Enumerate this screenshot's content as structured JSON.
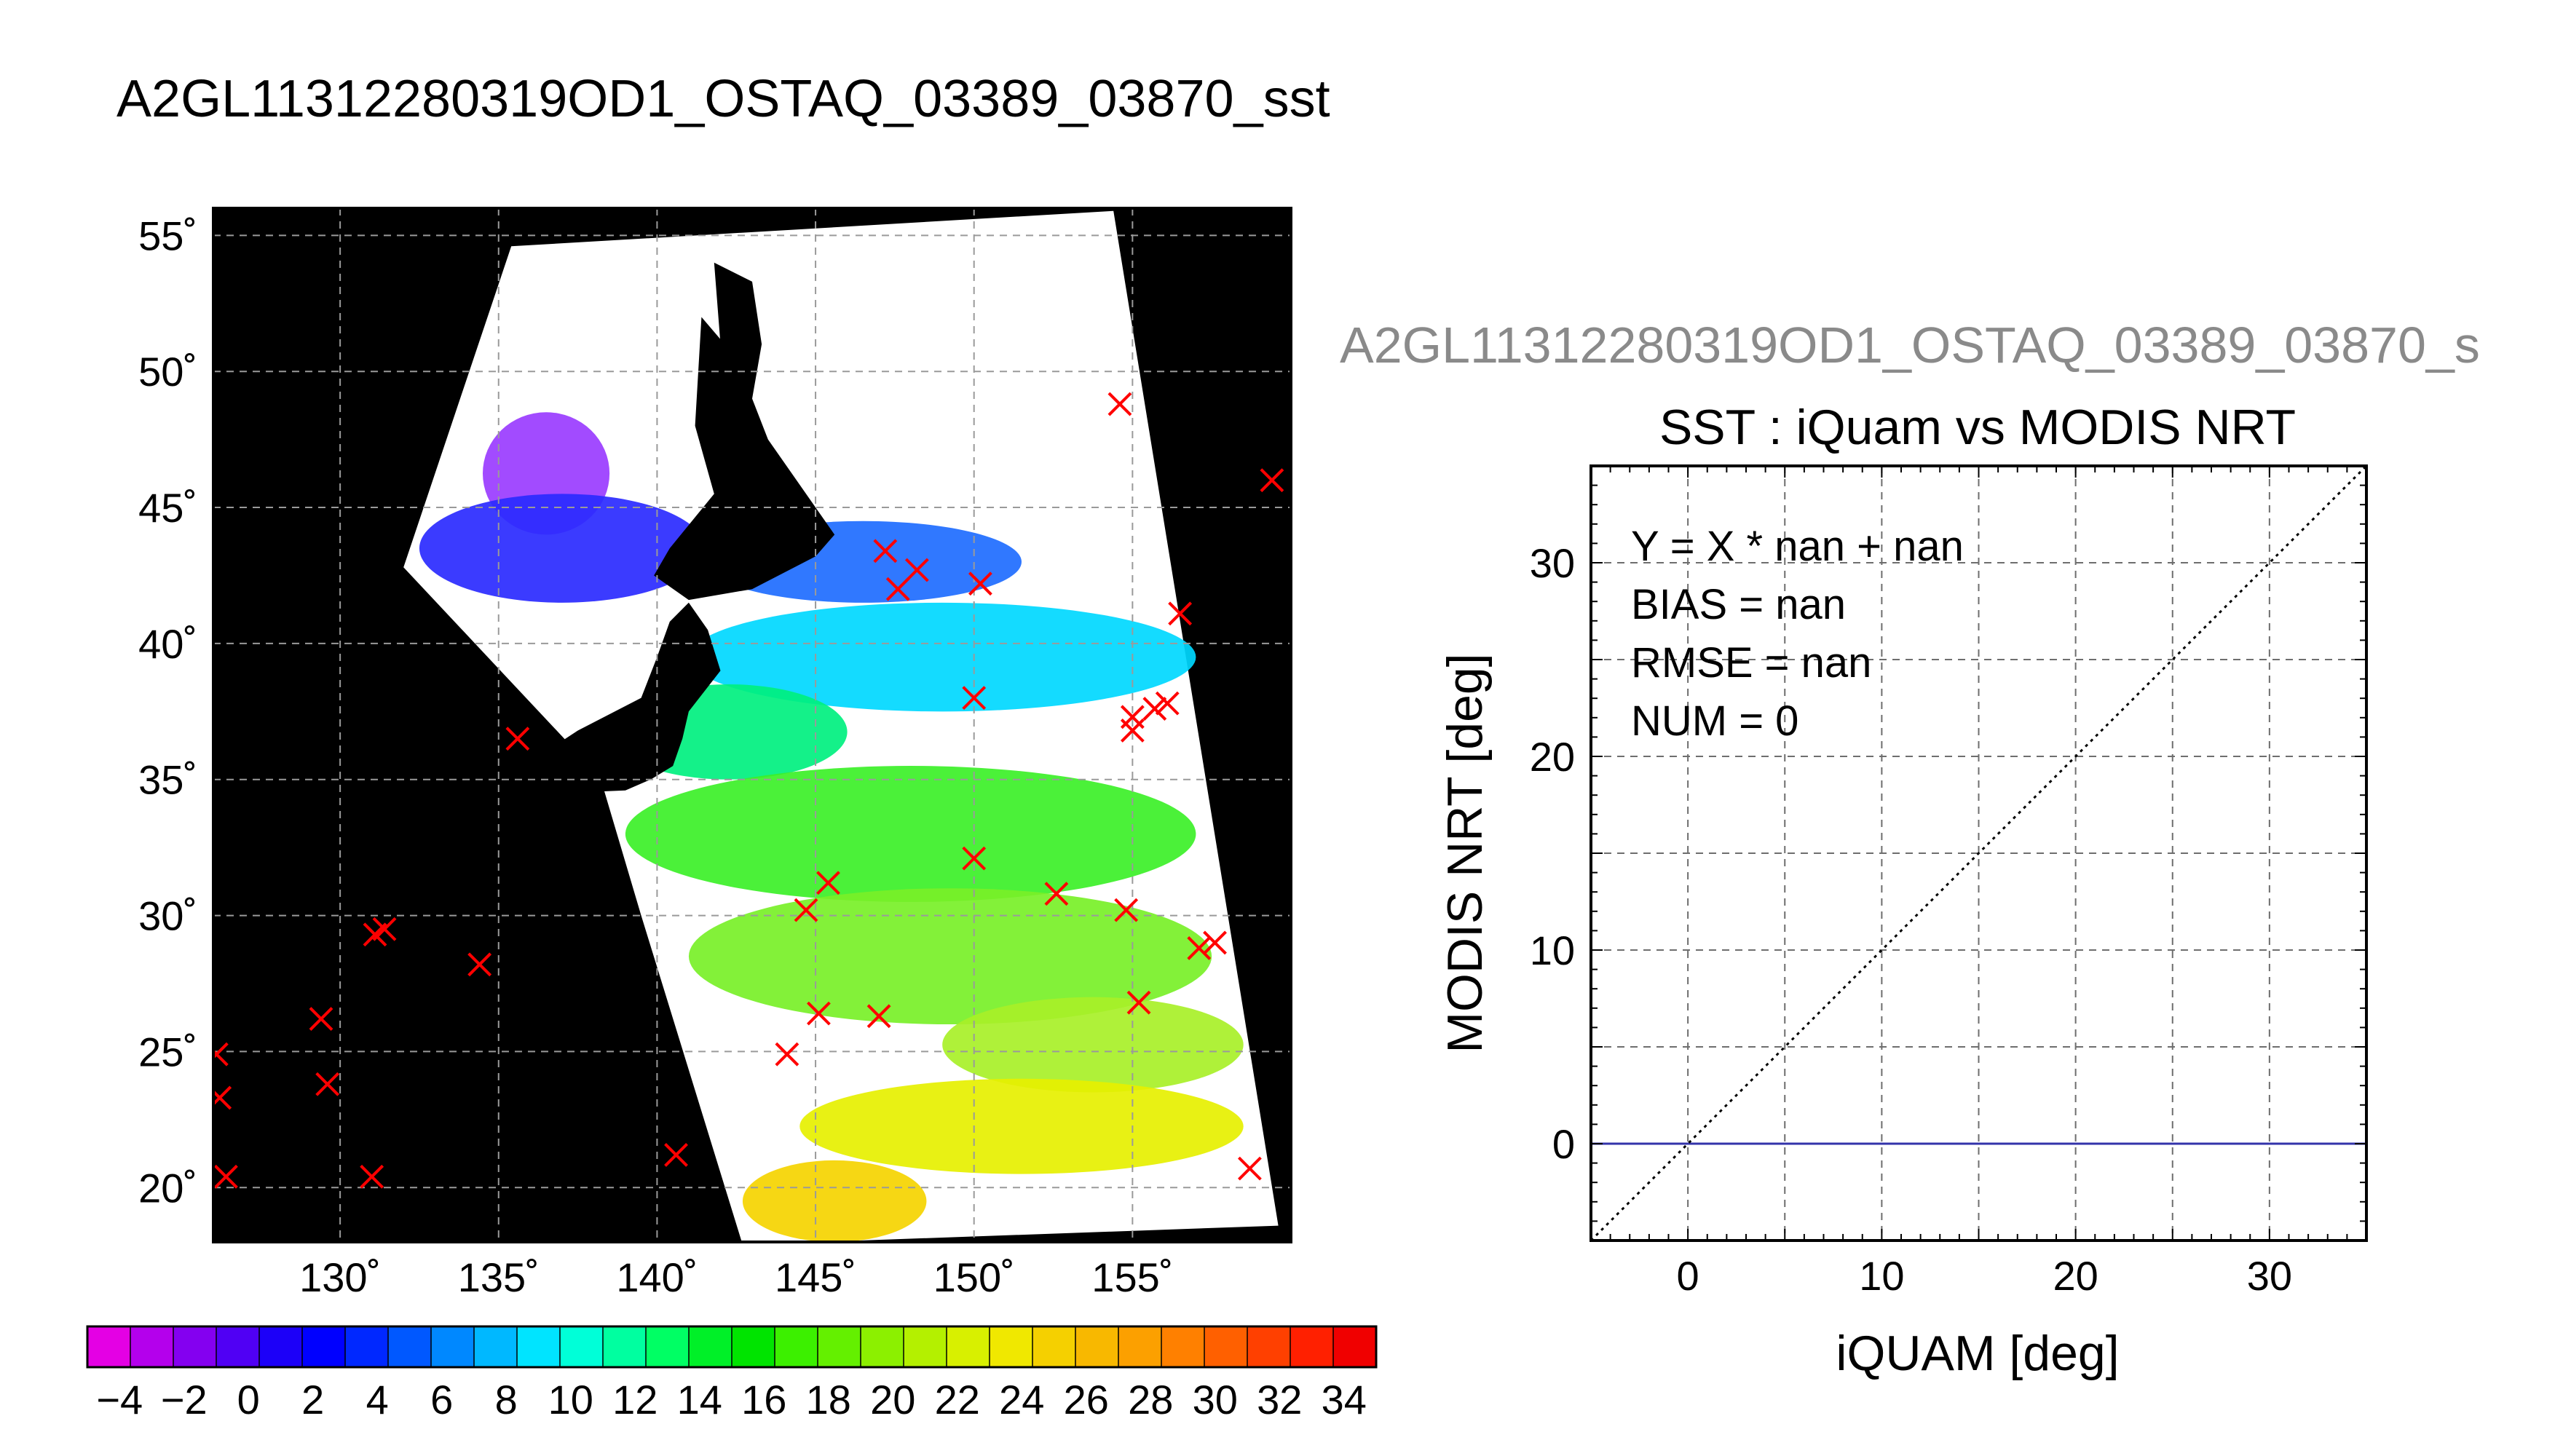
{
  "figure": {
    "main_title": "A2GL11312280319OD1_OSTAQ_03389_03870_sst"
  },
  "chart_data": [
    {
      "type": "map",
      "title": "A2GL11312280319OD1_OSTAQ_03389_03870_sst",
      "xlim": [
        126,
        160
      ],
      "ylim": [
        18,
        56
      ],
      "x_ticks": [
        130,
        135,
        140,
        145,
        150,
        155
      ],
      "x_tick_labels": [
        "130˚",
        "135˚",
        "140˚",
        "145˚",
        "150˚",
        "155˚"
      ],
      "y_ticks": [
        20,
        25,
        30,
        35,
        40,
        45,
        50,
        55
      ],
      "y_tick_labels": [
        "20˚",
        "25˚",
        "30˚",
        "35˚",
        "40˚",
        "45˚",
        "50˚",
        "55˚"
      ],
      "grid": true,
      "swath": [
        [
          135.4,
          54.6
        ],
        [
          154.4,
          55.9
        ],
        [
          159.6,
          18.6
        ],
        [
          142.7,
          17.9
        ],
        [
          139.5,
          30.0
        ],
        [
          138.2,
          35.1
        ],
        [
          132.0,
          42.8
        ]
      ],
      "markers": {
        "symbol": "x",
        "color": "#ff0000",
        "lonlat": [
          [
            154.6,
            48.8
          ],
          [
            159.4,
            46.0
          ],
          [
            147.2,
            43.4
          ],
          [
            147.6,
            42.0
          ],
          [
            148.2,
            42.7
          ],
          [
            150.2,
            42.2
          ],
          [
            156.5,
            41.1
          ],
          [
            150.0,
            38.0
          ],
          [
            155.0,
            37.3
          ],
          [
            155.7,
            37.6
          ],
          [
            156.1,
            37.8
          ],
          [
            155.0,
            36.8
          ],
          [
            135.6,
            36.5
          ],
          [
            150.0,
            32.1
          ],
          [
            145.4,
            31.2
          ],
          [
            152.6,
            30.8
          ],
          [
            144.7,
            30.2
          ],
          [
            154.8,
            30.2
          ],
          [
            131.1,
            29.3
          ],
          [
            131.4,
            29.5
          ],
          [
            134.4,
            28.2
          ],
          [
            157.1,
            28.8
          ],
          [
            157.6,
            29.0
          ],
          [
            155.2,
            26.8
          ],
          [
            145.1,
            26.4
          ],
          [
            147.0,
            26.3
          ],
          [
            129.4,
            26.2
          ],
          [
            144.1,
            24.9
          ],
          [
            126.1,
            24.9
          ],
          [
            129.6,
            23.8
          ],
          [
            126.2,
            23.3
          ],
          [
            140.6,
            21.2
          ],
          [
            126.4,
            20.4
          ],
          [
            131.0,
            20.4
          ],
          [
            158.7,
            20.7
          ]
        ]
      },
      "sst_regions": [
        {
          "label": "-4",
          "color": "#9a3cff",
          "lon": [
            134.5,
            138.5
          ],
          "lat": [
            44.0,
            48.5
          ]
        },
        {
          "label": "2",
          "color": "#2a2aff",
          "lon": [
            132.5,
            141.5
          ],
          "lat": [
            41.5,
            45.5
          ]
        },
        {
          "label": "6",
          "color": "#1e6dff",
          "lon": [
            141.5,
            151.5
          ],
          "lat": [
            41.5,
            44.5
          ]
        },
        {
          "label": "12",
          "color": "#00d8ff",
          "lon": [
            141.0,
            157.0
          ],
          "lat": [
            37.5,
            41.5
          ]
        },
        {
          "label": "16",
          "color": "#00f07f",
          "lon": [
            138.5,
            146.0
          ],
          "lat": [
            35.0,
            38.5
          ]
        },
        {
          "label": "20",
          "color": "#3cf028",
          "lon": [
            139.0,
            157.0
          ],
          "lat": [
            30.5,
            35.5
          ]
        },
        {
          "label": "22",
          "color": "#78f028",
          "lon": [
            141.0,
            157.5
          ],
          "lat": [
            26.0,
            31.0
          ]
        },
        {
          "label": "24",
          "color": "#a8f028",
          "lon": [
            149.0,
            158.5
          ],
          "lat": [
            23.5,
            27.0
          ]
        },
        {
          "label": "27",
          "color": "#e6f000",
          "lon": [
            144.5,
            158.5
          ],
          "lat": [
            20.5,
            24.0
          ]
        },
        {
          "label": "29",
          "color": "#f5d400",
          "lon": [
            142.7,
            148.5
          ],
          "lat": [
            18.0,
            21.0
          ]
        }
      ],
      "land": [
        {
          "name": "Hokkaido",
          "lonlat": [
            [
              141.4,
              52.0
            ],
            [
              142.5,
              50.5
            ],
            [
              143.5,
              47.5
            ],
            [
              145.6,
              44.0
            ],
            [
              145.0,
              43.2
            ],
            [
              143.0,
              42.0
            ],
            [
              141.0,
              41.6
            ],
            [
              139.9,
              42.5
            ],
            [
              140.4,
              43.5
            ],
            [
              141.8,
              45.5
            ],
            [
              141.2,
              48.0
            ]
          ]
        },
        {
          "name": "Honshu",
          "lonlat": [
            [
              141.0,
              41.5
            ],
            [
              141.6,
              40.5
            ],
            [
              142.0,
              39.0
            ],
            [
              141.0,
              37.5
            ],
            [
              140.8,
              36.5
            ],
            [
              140.5,
              35.5
            ],
            [
              139.8,
              35.0
            ],
            [
              139.0,
              34.6
            ],
            [
              137.0,
              34.5
            ],
            [
              136.0,
              33.8
            ],
            [
              135.2,
              34.4
            ],
            [
              135.8,
              35.5
            ],
            [
              137.5,
              36.8
            ],
            [
              139.5,
              38.0
            ],
            [
              140.0,
              39.5
            ],
            [
              140.4,
              40.8
            ]
          ]
        },
        {
          "name": "Sakhalin",
          "lonlat": [
            [
              141.8,
              54.0
            ],
            [
              143.0,
              53.3
            ],
            [
              143.3,
              51.0
            ],
            [
              143.0,
              49.0
            ],
            [
              142.2,
              46.5
            ],
            [
              141.8,
              47.5
            ],
            [
              142.0,
              51.0
            ]
          ]
        }
      ],
      "colorbar": {
        "min": -5,
        "max": 35,
        "tick_values": [
          -4,
          -2,
          0,
          2,
          4,
          6,
          8,
          10,
          12,
          14,
          16,
          18,
          20,
          22,
          24,
          26,
          28,
          30,
          32,
          34
        ],
        "tick_labels": [
          "−4",
          "−2",
          "0",
          "2",
          "4",
          "6",
          "8",
          "10",
          "12",
          "14",
          "16",
          "18",
          "20",
          "22",
          "24",
          "26",
          "28",
          "30",
          "32",
          "34"
        ],
        "colors": [
          "#e400e4",
          "#b400ec",
          "#8400f0",
          "#5000f4",
          "#1c00f8",
          "#0000ff",
          "#0028ff",
          "#0058ff",
          "#0088ff",
          "#00b8ff",
          "#00e4ff",
          "#00ffd8",
          "#00ffa0",
          "#00ff64",
          "#00f028",
          "#00e400",
          "#3cf000",
          "#64f000",
          "#8cf000",
          "#b4f000",
          "#d8f000",
          "#f0e800",
          "#f5d000",
          "#f8b800",
          "#fca000",
          "#ff8000",
          "#ff6000",
          "#ff4000",
          "#ff2000",
          "#f00000"
        ]
      }
    },
    {
      "type": "scatter",
      "title": "A2GL11312280319OD1_OSTAQ_03389_03870_s",
      "subtitle": "SST : iQuam vs MODIS NRT",
      "xlabel": "iQUAM [deg]",
      "ylabel": "MODIS NRT [deg]",
      "xlim": [
        -5,
        35
      ],
      "ylim": [
        -5,
        35
      ],
      "x_ticks": [
        0,
        10,
        20,
        30
      ],
      "y_ticks": [
        0,
        10,
        20,
        30
      ],
      "grid_step": 5,
      "grid": true,
      "reference_line": {
        "name": "1:1",
        "x": [
          -5,
          35
        ],
        "y": [
          -5,
          35
        ],
        "color": "#000000"
      },
      "zero_line": {
        "y": 0,
        "color": "#3333aa"
      },
      "stats": [
        "Y = X * nan + nan",
        "BIAS = nan",
        "RMSE = nan",
        "NUM = 0"
      ],
      "points": []
    }
  ]
}
